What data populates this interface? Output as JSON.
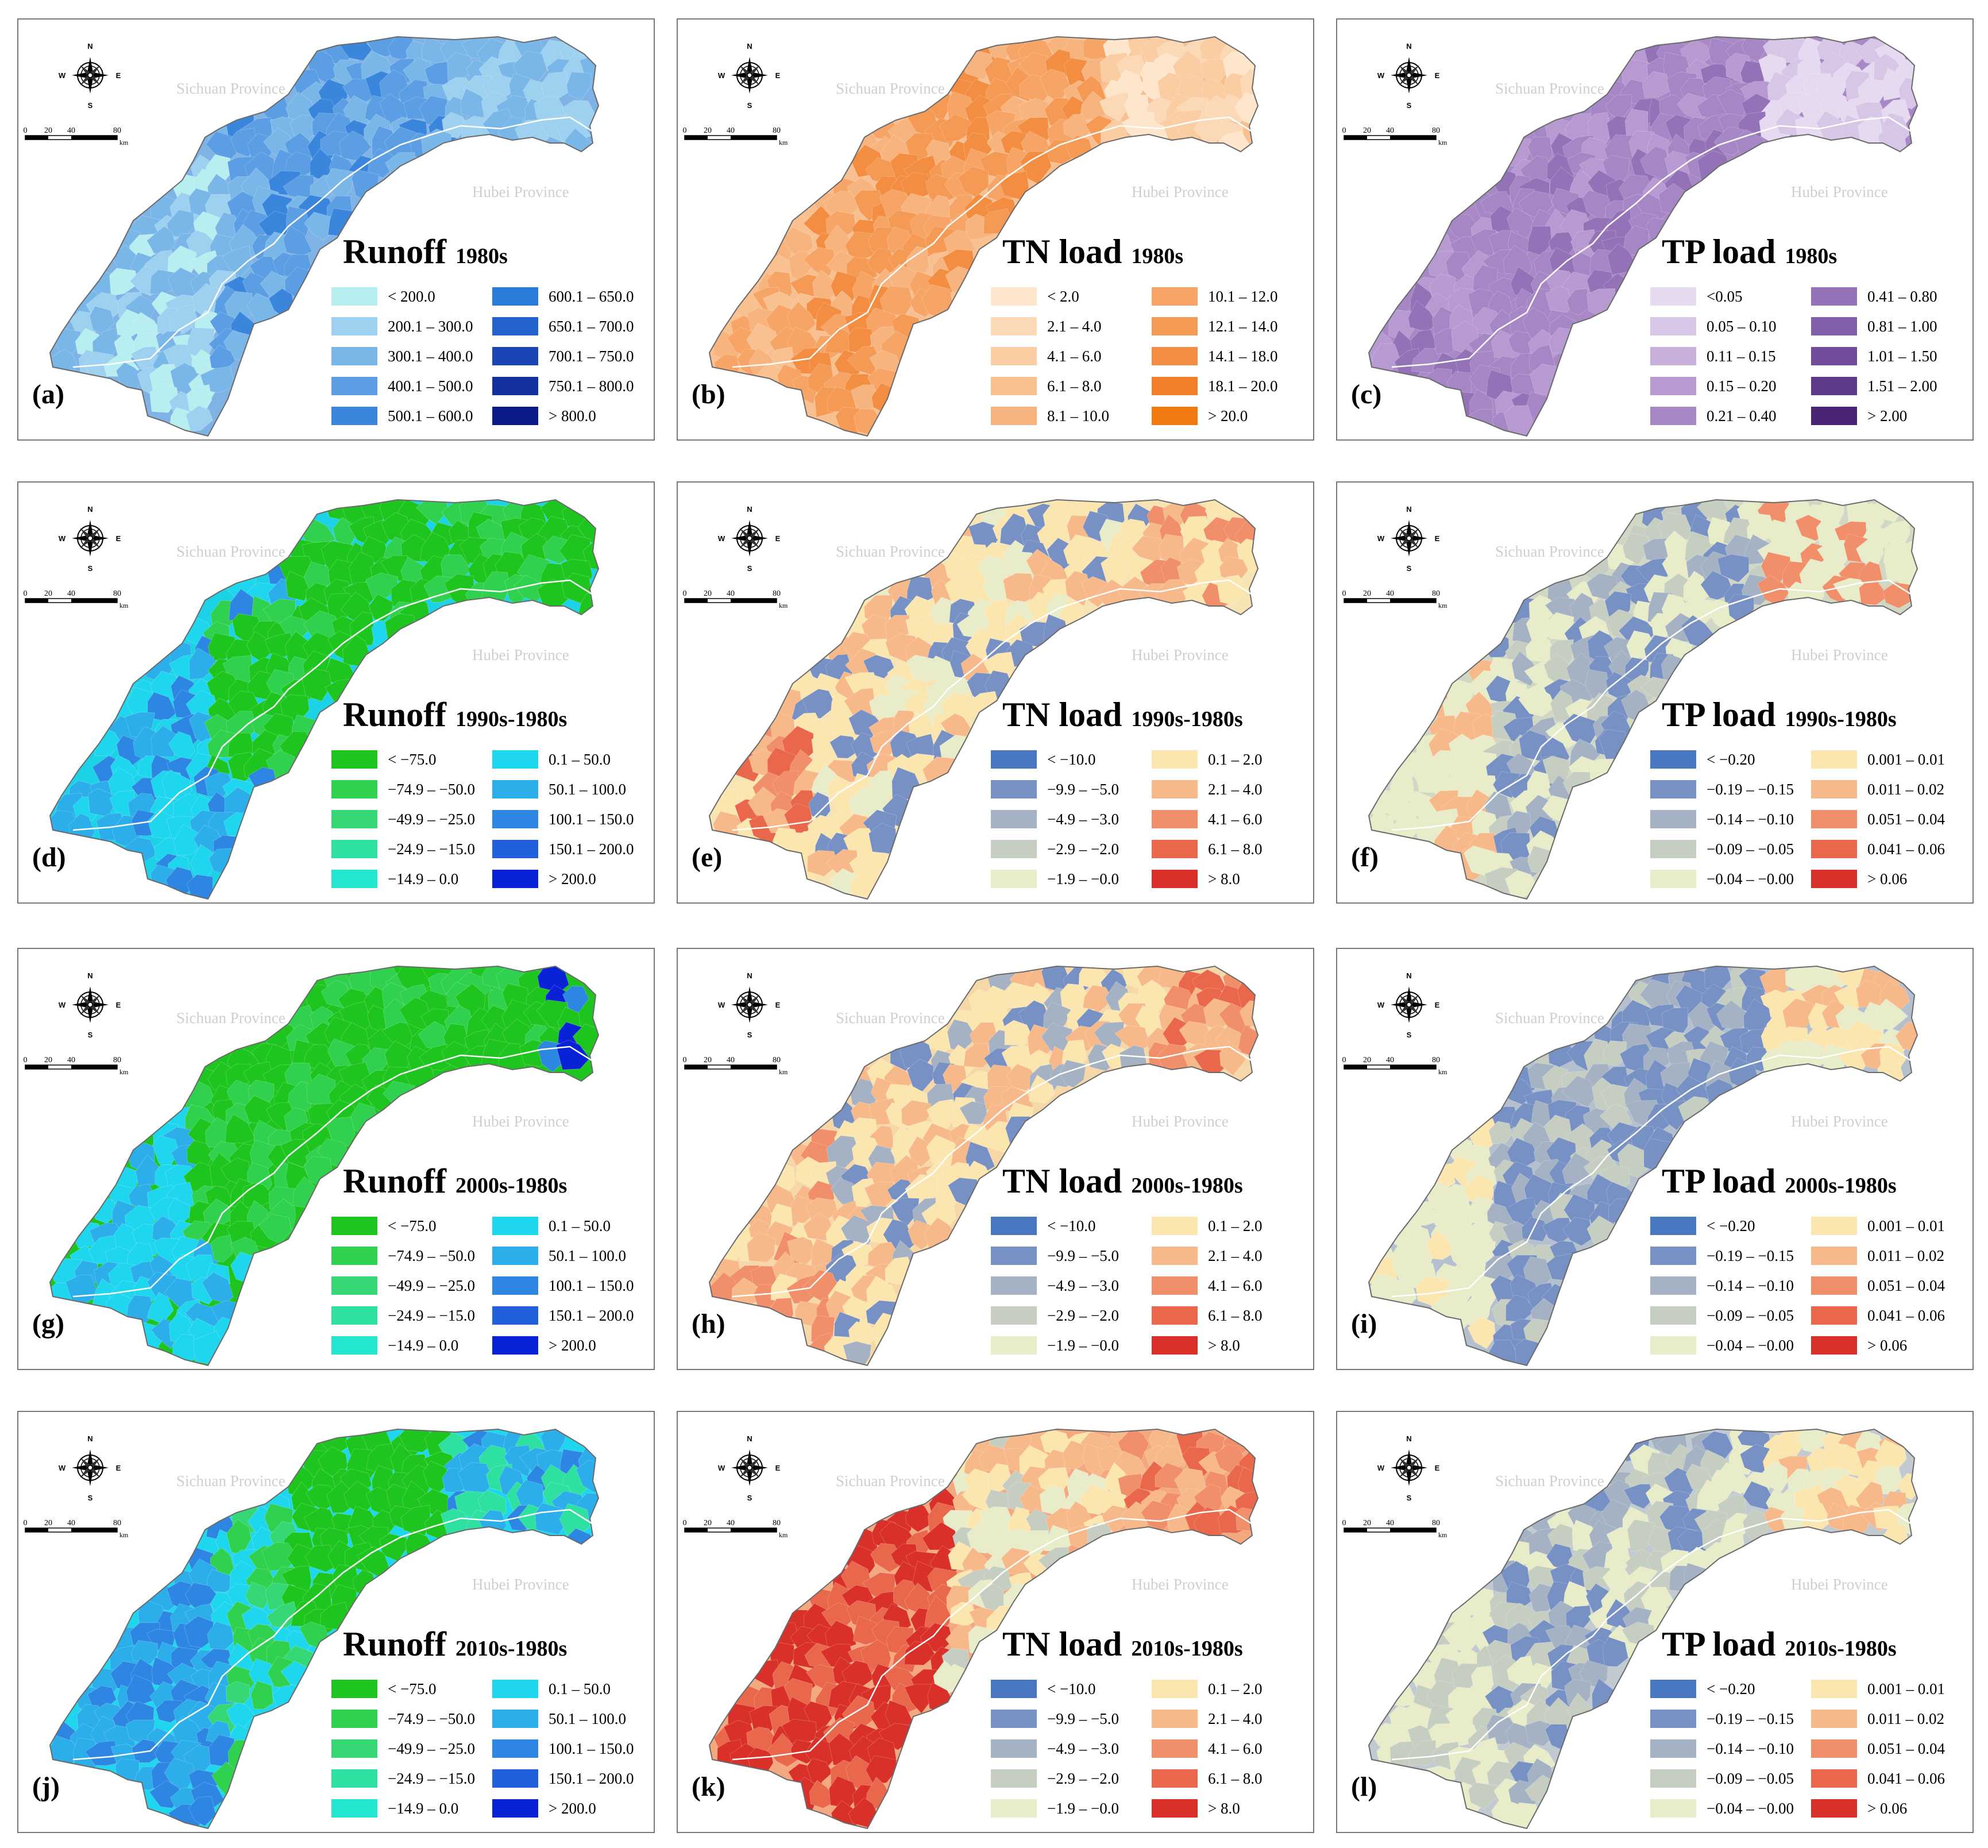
{
  "provinces": {
    "sichuan": "Sichuan Province",
    "hubei": "Hubei Province"
  },
  "compass": {
    "n": "N",
    "s": "S",
    "e": "E",
    "w": "W"
  },
  "scale": {
    "ticks": [
      "0",
      "20",
      "40",
      "80"
    ],
    "unit": "km"
  },
  "panels": [
    {
      "id": "a",
      "label": "(a)",
      "variable": "Runoff",
      "decade": "1980s",
      "palette": "runoff",
      "base": "#7fb3e6",
      "legend": [
        [
          "#b9eef0",
          "< 200.0"
        ],
        [
          "#9ed0ef",
          "200.1 – 300.0"
        ],
        [
          "#7ab7e9",
          "300.1 – 400.0"
        ],
        [
          "#5b9ee3",
          "400.1 – 500.0"
        ],
        [
          "#3b86dd",
          "500.1 – 600.0"
        ],
        [
          "#2b7bd8",
          "600.1 – 650.0"
        ],
        [
          "#2463cc",
          "650.1 – 700.0"
        ],
        [
          "#1b45b5",
          "700.1 – 750.0"
        ],
        [
          "#12309e",
          "750.1 – 800.0"
        ],
        [
          "#0a1a86",
          "> 800.0"
        ]
      ]
    },
    {
      "id": "b",
      "label": "(b)",
      "variable": "TN load",
      "decade": "1980s",
      "palette": "tn",
      "base": "#f8c090",
      "legend": [
        [
          "#fde6cc",
          "< 2.0"
        ],
        [
          "#fcd9b6",
          "2.1 – 4.0"
        ],
        [
          "#fbcda3",
          "4.1 – 6.0"
        ],
        [
          "#f9c090",
          "6.1 – 8.0"
        ],
        [
          "#f8b47e",
          "8.1 – 10.0"
        ],
        [
          "#f6a566",
          "10.1 – 12.0"
        ],
        [
          "#f49a55",
          "12.1 – 14.0"
        ],
        [
          "#f28d42",
          "14.1 – 18.0"
        ],
        [
          "#f07e2a",
          "18.1 – 20.0"
        ],
        [
          "#ee7a10",
          "> 20.0"
        ]
      ]
    },
    {
      "id": "c",
      "label": "(c)",
      "variable": "TP load",
      "decade": "1980s",
      "palette": "tp",
      "base": "#a888c5",
      "legend": [
        [
          "#e6daf0",
          "<0.05"
        ],
        [
          "#d8c6e7",
          "0.05 – 0.10"
        ],
        [
          "#c7b0dc",
          "0.11 – 0.15"
        ],
        [
          "#b69ad1",
          "0.15 – 0.20"
        ],
        [
          "#a487c4",
          "0.21 – 0.40"
        ],
        [
          "#9472b8",
          "0.41 – 0.80"
        ],
        [
          "#8360ab",
          "0.81 – 1.00"
        ],
        [
          "#714d9c",
          "1.01 – 1.50"
        ],
        [
          "#5e3a8a",
          "1.51 – 2.00"
        ],
        [
          "#4a2574",
          "> 2.00"
        ]
      ]
    },
    {
      "id": "d",
      "label": "(d)",
      "variable": "Runoff",
      "decade": "1990s-1980s",
      "palette": "drunoff",
      "base": "#1bd2e6",
      "legend": [
        [
          "#1ec51e",
          "< −75.0"
        ],
        [
          "#2fd14e",
          "−74.9 – −50.0"
        ],
        [
          "#35d875",
          "−49.9 – −25.0"
        ],
        [
          "#2ee1a0",
          "−24.9 – −15.0"
        ],
        [
          "#22e6d0",
          "−14.9 – 0.0"
        ],
        [
          "#1fd6ef",
          "0.1 – 50.0"
        ],
        [
          "#2baee9",
          "50.1 – 100.0"
        ],
        [
          "#2e86e3",
          "100.1 – 150.0"
        ],
        [
          "#2060dc",
          "150.1 – 200.0"
        ],
        [
          "#0a22d6",
          "> 200.0"
        ]
      ]
    },
    {
      "id": "e",
      "label": "(e)",
      "variable": "TN load",
      "decade": "1990s-1980s",
      "palette": "dtn",
      "base": "#f6e4b4",
      "legend": [
        [
          "#4a78c0",
          "< −10.0"
        ],
        [
          "#7791c4",
          "−9.9 – −5.0"
        ],
        [
          "#a4b2c4",
          "−4.9 – −3.0"
        ],
        [
          "#c6cec2",
          "−2.9 – −2.0"
        ],
        [
          "#e8ecc8",
          "−1.9 – −0.0"
        ],
        [
          "#fbe6b0",
          "0.1 – 2.0"
        ],
        [
          "#f7b98a",
          "2.1 – 4.0"
        ],
        [
          "#f08f6a",
          "4.1 – 6.0"
        ],
        [
          "#e9684c",
          "6.1 – 8.0"
        ],
        [
          "#d9302a",
          "> 8.0"
        ]
      ]
    },
    {
      "id": "f",
      "label": "(f)",
      "variable": "TP load",
      "decade": "1990s-1980s",
      "palette": "dtp",
      "base": "#d0d8c4",
      "legend": [
        [
          "#4a78c0",
          "< −0.20"
        ],
        [
          "#7791c4",
          "−0.19 – −0.15"
        ],
        [
          "#a4b2c4",
          "−0.14 – −0.10"
        ],
        [
          "#c6cec2",
          "−0.09 – −0.05"
        ],
        [
          "#e8ecc8",
          "−0.04 – −0.00"
        ],
        [
          "#fbe6b0",
          "0.001 – 0.01"
        ],
        [
          "#f7b98a",
          "0.011 – 0.02"
        ],
        [
          "#f08f6a",
          "0.051 – 0.04"
        ],
        [
          "#e9684c",
          "0.041 – 0.06"
        ],
        [
          "#d9302a",
          "> 0.06"
        ]
      ]
    },
    {
      "id": "g",
      "label": "(g)",
      "variable": "Runoff",
      "decade": "2000s-1980s",
      "palette": "drunoff",
      "base": "#1ec51e",
      "legend": [
        [
          "#1ec51e",
          "< −75.0"
        ],
        [
          "#2fd14e",
          "−74.9 – −50.0"
        ],
        [
          "#35d875",
          "−49.9 – −25.0"
        ],
        [
          "#2ee1a0",
          "−24.9 – −15.0"
        ],
        [
          "#22e6d0",
          "−14.9 – 0.0"
        ],
        [
          "#1fd6ef",
          "0.1 – 50.0"
        ],
        [
          "#2baee9",
          "50.1 – 100.0"
        ],
        [
          "#2e86e3",
          "100.1 – 150.0"
        ],
        [
          "#2060dc",
          "150.1 – 200.0"
        ],
        [
          "#0a22d6",
          "> 200.0"
        ]
      ]
    },
    {
      "id": "h",
      "label": "(h)",
      "variable": "TN load",
      "decade": "2000s-1980s",
      "palette": "dtn",
      "base": "#f6d8a8",
      "legend": [
        [
          "#4a78c0",
          "< −10.0"
        ],
        [
          "#7791c4",
          "−9.9 – −5.0"
        ],
        [
          "#a4b2c4",
          "−4.9 – −3.0"
        ],
        [
          "#c6cec2",
          "−2.9 – −2.0"
        ],
        [
          "#e8ecc8",
          "−1.9 – −0.0"
        ],
        [
          "#fbe6b0",
          "0.1 – 2.0"
        ],
        [
          "#f7b98a",
          "2.1 – 4.0"
        ],
        [
          "#f08f6a",
          "4.1 – 6.0"
        ],
        [
          "#e9684c",
          "6.1 – 8.0"
        ],
        [
          "#d9302a",
          "> 8.0"
        ]
      ]
    },
    {
      "id": "i",
      "label": "(i)",
      "variable": "TP load",
      "decade": "2000s-1980s",
      "palette": "dtp",
      "base": "#b4c0ce",
      "legend": [
        [
          "#4a78c0",
          "< −0.20"
        ],
        [
          "#7791c4",
          "−0.19 – −0.15"
        ],
        [
          "#a4b2c4",
          "−0.14 – −0.10"
        ],
        [
          "#c6cec2",
          "−0.09 – −0.05"
        ],
        [
          "#e8ecc8",
          "−0.04 – −0.00"
        ],
        [
          "#fbe6b0",
          "0.001 – 0.01"
        ],
        [
          "#f7b98a",
          "0.011 – 0.02"
        ],
        [
          "#f08f6a",
          "0.051 – 0.04"
        ],
        [
          "#e9684c",
          "0.041 – 0.06"
        ],
        [
          "#d9302a",
          "> 0.06"
        ]
      ]
    },
    {
      "id": "j",
      "label": "(j)",
      "variable": "Runoff",
      "decade": "2010s-1980s",
      "palette": "drunoff",
      "base": "#1fd6ef",
      "legend": [
        [
          "#1ec51e",
          "< −75.0"
        ],
        [
          "#2fd14e",
          "−74.9 – −50.0"
        ],
        [
          "#35d875",
          "−49.9 – −25.0"
        ],
        [
          "#2ee1a0",
          "−24.9 – −15.0"
        ],
        [
          "#22e6d0",
          "−14.9 – 0.0"
        ],
        [
          "#1fd6ef",
          "0.1 – 50.0"
        ],
        [
          "#2baee9",
          "50.1 – 100.0"
        ],
        [
          "#2e86e3",
          "100.1 – 150.0"
        ],
        [
          "#2060dc",
          "150.1 – 200.0"
        ],
        [
          "#0a22d6",
          "> 200.0"
        ]
      ]
    },
    {
      "id": "k",
      "label": "(k)",
      "variable": "TN load",
      "decade": "2010s-1980s",
      "palette": "dtn",
      "base": "#f4a880",
      "legend": [
        [
          "#4a78c0",
          "< −10.0"
        ],
        [
          "#7791c4",
          "−9.9 – −5.0"
        ],
        [
          "#a4b2c4",
          "−4.9 – −3.0"
        ],
        [
          "#c6cec2",
          "−2.9 – −2.0"
        ],
        [
          "#e8ecc8",
          "−1.9 – −0.0"
        ],
        [
          "#fbe6b0",
          "0.1 – 2.0"
        ],
        [
          "#f7b98a",
          "2.1 – 4.0"
        ],
        [
          "#f08f6a",
          "4.1 – 6.0"
        ],
        [
          "#e9684c",
          "6.1 – 8.0"
        ],
        [
          "#d9302a",
          "> 8.0"
        ]
      ]
    },
    {
      "id": "l",
      "label": "(l)",
      "variable": "TP load",
      "decade": "2010s-1980s",
      "palette": "dtp",
      "base": "#c0cad0",
      "legend": [
        [
          "#4a78c0",
          "< −0.20"
        ],
        [
          "#7791c4",
          "−0.19 – −0.15"
        ],
        [
          "#a4b2c4",
          "−0.14 – −0.10"
        ],
        [
          "#c6cec2",
          "−0.09 – −0.05"
        ],
        [
          "#e8ecc8",
          "−0.04 – −0.00"
        ],
        [
          "#fbe6b0",
          "0.001 – 0.01"
        ],
        [
          "#f7b98a",
          "0.011 – 0.02"
        ],
        [
          "#f08f6a",
          "0.051 – 0.04"
        ],
        [
          "#e9684c",
          "0.041 – 0.06"
        ],
        [
          "#d9302a",
          "> 0.06"
        ]
      ]
    }
  ]
}
